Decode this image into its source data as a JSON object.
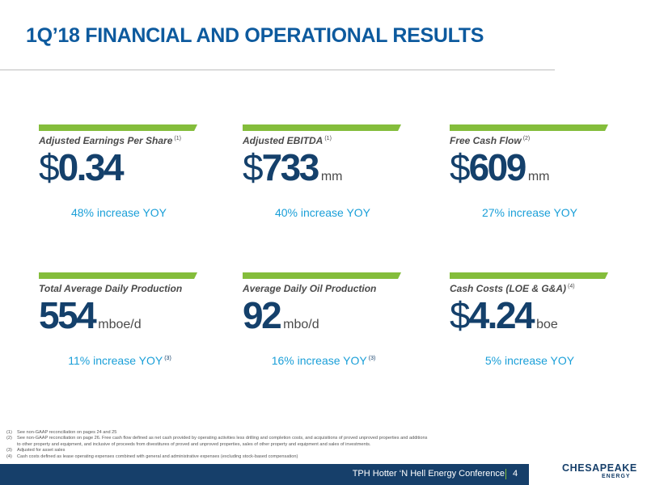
{
  "title": "1Q’18 FINANCIAL AND OPERATIONAL RESULTS",
  "metrics": [
    {
      "label": "Adjusted Earnings Per Share",
      "note": "(1)",
      "currency": "$",
      "value": "0.34",
      "unit": "",
      "change": "48% increase YOY",
      "change_note": ""
    },
    {
      "label": "Adjusted EBITDA",
      "note": "(1)",
      "currency": "$",
      "value": "733",
      "unit": "mm",
      "change": "40% increase YOY",
      "change_note": ""
    },
    {
      "label": "Free Cash Flow",
      "note": "(2)",
      "currency": "$",
      "value": "609",
      "unit": "mm",
      "change": "27% increase YOY",
      "change_note": ""
    },
    {
      "label": "Total Average Daily Production",
      "note": "",
      "currency": "",
      "value": "554",
      "unit": "mboe/d",
      "change": "11% increase YOY",
      "change_note": "(3)"
    },
    {
      "label": "Average Daily Oil Production",
      "note": "",
      "currency": "",
      "value": "92",
      "unit": "mbo/d",
      "change": "16% increase YOY",
      "change_note": "(3)"
    },
    {
      "label": "Cash Costs (LOE & G&A)",
      "note": "(4)",
      "currency": "$",
      "value": "4.24",
      "unit": "boe",
      "change": "5% increase YOY",
      "change_note": ""
    }
  ],
  "footnotes": {
    "f1_num": "(1)",
    "f1_text": "See non-GAAP reconciliation on pages 24 and 25",
    "f2_num": "(2)",
    "f2_text": "See non-GAAP reconciliation on page 26. Free cash flow defined as net cash provided by operating activities less drilling and completion costs, and acquisitions of proved unproved properties and additions",
    "f2_cont": "to other property and equipment, and inclusive of proceeds from divestitures of proved and unproved properties, sales of other property and equipment and sales of investments.",
    "f3_num": "(3)",
    "f3_text": "Adjusted for asset sales",
    "f4_num": "(4)",
    "f4_text": "Cash costs defined as lease operating expenses combined with general and administrative expenses (excluding stock-based compensation)"
  },
  "footer": {
    "conference": "TPH Hotter ‘N Hell Energy Conference",
    "page": "4"
  },
  "logo": {
    "main": "CHESAPEAKE",
    "sub": "ENERGY"
  },
  "colors": {
    "accent_green": "#84bd3b",
    "title_blue": "#0d5a9e",
    "navy": "#14406b",
    "change_blue": "#1a9fd8"
  }
}
